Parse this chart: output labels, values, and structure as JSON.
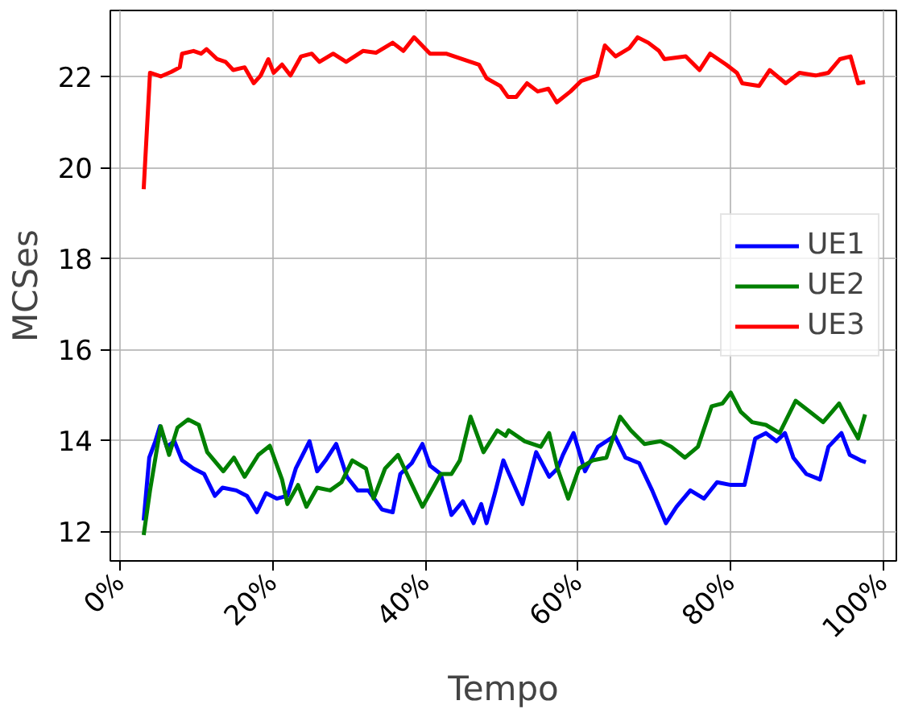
{
  "chart_data": {
    "type": "line",
    "xlabel": "Tempo",
    "ylabel": "MCSes",
    "xlim": [
      -1.3,
      101.7
    ],
    "ylim": [
      11.35,
      23.45
    ],
    "xticks": [
      {
        "value": 0,
        "label": "0%"
      },
      {
        "value": 20,
        "label": "20%"
      },
      {
        "value": 40,
        "label": "40%"
      },
      {
        "value": 60,
        "label": "60%"
      },
      {
        "value": 80,
        "label": "80%"
      },
      {
        "value": 100,
        "label": "100%"
      }
    ],
    "yticks": [
      12,
      14,
      16,
      18,
      20,
      22
    ],
    "grid": true,
    "legend": "right",
    "line_style": "solid",
    "series": [
      {
        "name": "UE1",
        "color": "#0000ff",
        "x": [
          3.07,
          3.8,
          4.6,
          5.2,
          6.1,
          7.1,
          8.1,
          9.6,
          11.0,
          12.4,
          13.4,
          15.2,
          16.6,
          17.9,
          19.1,
          20.5,
          21.9,
          23.0,
          24.8,
          25.8,
          26.9,
          28.3,
          29.7,
          31.1,
          32.5,
          34.3,
          35.7,
          36.7,
          38.2,
          39.6,
          40.6,
          42.0,
          43.4,
          44.9,
          46.3,
          47.3,
          48.0,
          49.1,
          50.2,
          50.8,
          52.7,
          54.5,
          56.2,
          57.3,
          58.0,
          59.4,
          60.9,
          62.6,
          64.8,
          66.2,
          68.0,
          69.7,
          71.5,
          72.9,
          74.7,
          76.5,
          78.2,
          80.0,
          81.8,
          83.2,
          84.6,
          86.0,
          87.1,
          88.2,
          89.9,
          91.7,
          92.8,
          94.5,
          95.6,
          97.0,
          97.7
        ],
        "values": [
          12.24,
          13.62,
          13.98,
          14.31,
          13.86,
          13.98,
          13.56,
          13.38,
          13.26,
          12.78,
          12.96,
          12.9,
          12.78,
          12.42,
          12.84,
          12.72,
          12.78,
          13.38,
          13.98,
          13.32,
          13.56,
          13.92,
          13.2,
          12.9,
          12.9,
          12.48,
          12.42,
          13.26,
          13.5,
          13.92,
          13.44,
          13.26,
          12.36,
          12.66,
          12.18,
          12.6,
          12.18,
          12.84,
          13.56,
          13.32,
          12.6,
          13.74,
          13.2,
          13.38,
          13.68,
          14.16,
          13.32,
          13.86,
          14.1,
          13.62,
          13.5,
          12.9,
          12.18,
          12.54,
          12.9,
          12.72,
          13.08,
          13.02,
          13.02,
          14.04,
          14.16,
          13.98,
          14.16,
          13.62,
          13.26,
          13.14,
          13.86,
          14.16,
          13.68,
          13.56,
          13.52
        ]
      },
      {
        "name": "UE2",
        "color": "#008000",
        "x": [
          3.07,
          3.9,
          5.3,
          6.4,
          7.5,
          8.9,
          10.3,
          11.4,
          13.5,
          14.9,
          16.3,
          18.1,
          19.6,
          21.2,
          21.9,
          23.3,
          24.4,
          25.8,
          27.5,
          29.0,
          30.4,
          32.2,
          33.2,
          34.7,
          36.4,
          37.9,
          39.6,
          40.6,
          42.0,
          43.4,
          44.5,
          45.9,
          47.6,
          49.4,
          50.5,
          50.9,
          53.0,
          55.1,
          56.2,
          57.3,
          58.7,
          60.1,
          61.9,
          63.7,
          65.5,
          66.9,
          68.7,
          70.8,
          72.2,
          74.0,
          75.7,
          77.5,
          78.9,
          80.0,
          81.3,
          82.8,
          84.6,
          86.4,
          88.5,
          89.9,
          92.1,
          94.2,
          95.3,
          96.7,
          97.6
        ],
        "values": [
          11.92,
          12.9,
          14.31,
          13.68,
          14.28,
          14.46,
          14.34,
          13.74,
          13.32,
          13.62,
          13.2,
          13.68,
          13.88,
          13.14,
          12.6,
          13.02,
          12.54,
          12.96,
          12.9,
          13.08,
          13.56,
          13.38,
          12.72,
          13.38,
          13.68,
          13.14,
          12.54,
          12.84,
          13.26,
          13.26,
          13.56,
          14.52,
          13.74,
          14.22,
          14.1,
          14.22,
          13.98,
          13.86,
          14.16,
          13.38,
          12.72,
          13.38,
          13.56,
          13.62,
          14.52,
          14.22,
          13.92,
          13.98,
          13.86,
          13.62,
          13.86,
          14.75,
          14.81,
          15.05,
          14.63,
          14.4,
          14.34,
          14.16,
          14.87,
          14.69,
          14.4,
          14.81,
          14.46,
          14.04,
          14.57
        ]
      },
      {
        "name": "UE3",
        "color": "#ff0000",
        "x": [
          3.07,
          3.9,
          5.3,
          6.7,
          7.8,
          8.1,
          9.6,
          10.6,
          11.3,
          12.7,
          13.8,
          14.8,
          16.3,
          17.5,
          18.4,
          19.4,
          20.1,
          21.2,
          22.3,
          23.7,
          25.1,
          26.1,
          27.9,
          29.6,
          31.8,
          33.5,
          35.7,
          37.1,
          38.5,
          40.6,
          42.7,
          44.8,
          47.0,
          48.0,
          49.8,
          50.8,
          51.9,
          53.3,
          54.7,
          56.1,
          57.2,
          59.0,
          60.4,
          62.5,
          63.5,
          64.9,
          66.7,
          67.8,
          69.2,
          70.6,
          71.3,
          74.1,
          75.9,
          77.3,
          79.4,
          80.8,
          81.5,
          83.7,
          85.1,
          87.2,
          89.0,
          91.1,
          92.8,
          94.3,
          95.7,
          96.7,
          97.6
        ],
        "values": [
          19.52,
          22.08,
          22.0,
          22.1,
          22.2,
          22.5,
          22.56,
          22.5,
          22.6,
          22.38,
          22.32,
          22.14,
          22.2,
          21.85,
          22.02,
          22.38,
          22.08,
          22.26,
          22.02,
          22.44,
          22.5,
          22.32,
          22.5,
          22.32,
          22.56,
          22.52,
          22.74,
          22.56,
          22.86,
          22.5,
          22.5,
          22.38,
          22.26,
          21.96,
          21.79,
          21.55,
          21.55,
          21.85,
          21.67,
          21.73,
          21.43,
          21.67,
          21.9,
          22.02,
          22.68,
          22.44,
          22.62,
          22.86,
          22.74,
          22.56,
          22.38,
          22.44,
          22.14,
          22.5,
          22.26,
          22.08,
          21.85,
          21.79,
          22.14,
          21.85,
          22.08,
          22.02,
          22.08,
          22.38,
          22.44,
          21.85,
          21.88
        ]
      }
    ]
  }
}
